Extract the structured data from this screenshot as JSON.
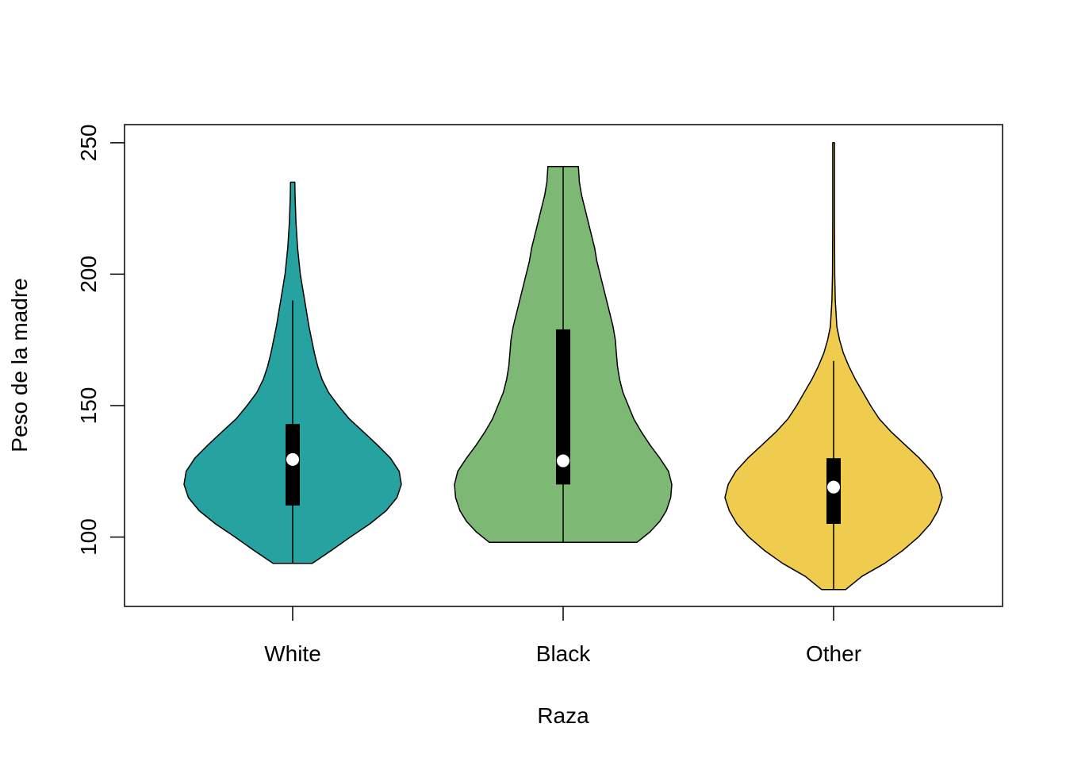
{
  "chart_data": {
    "type": "violin",
    "title": "",
    "xlabel": "Raza",
    "ylabel": "Peso de la madre",
    "ylim": [
      73.6,
      256.9
    ],
    "yticks": [
      100,
      150,
      200,
      250
    ],
    "ytick_labels": [
      "100",
      "150",
      "200",
      "250"
    ],
    "grid": false,
    "categories": [
      "White",
      "Black",
      "Other"
    ],
    "series": [
      {
        "category": "White",
        "color": "#26A3A1",
        "min": 90,
        "q1": 112,
        "median": 129.5,
        "q3": 143,
        "max": 235,
        "whisker_low": 90,
        "whisker_high": 190,
        "density": [
          [
            90,
            0.18
          ],
          [
            95,
            0.36
          ],
          [
            100,
            0.53
          ],
          [
            105,
            0.71
          ],
          [
            110,
            0.86
          ],
          [
            115,
            0.96
          ],
          [
            120,
            1.0
          ],
          [
            125,
            0.98
          ],
          [
            130,
            0.9
          ],
          [
            135,
            0.78
          ],
          [
            140,
            0.65
          ],
          [
            145,
            0.52
          ],
          [
            150,
            0.42
          ],
          [
            155,
            0.33
          ],
          [
            160,
            0.27
          ],
          [
            165,
            0.23
          ],
          [
            170,
            0.2
          ],
          [
            180,
            0.15
          ],
          [
            190,
            0.11
          ],
          [
            200,
            0.07
          ],
          [
            210,
            0.045
          ],
          [
            220,
            0.03
          ],
          [
            230,
            0.022
          ],
          [
            235,
            0.02
          ]
        ]
      },
      {
        "category": "Black",
        "color": "#7DB874",
        "min": 98,
        "q1": 120,
        "median": 129,
        "q3": 179,
        "max": 241,
        "whisker_low": 98,
        "whisker_high": 241,
        "density": [
          [
            98,
            0.68
          ],
          [
            102,
            0.8
          ],
          [
            106,
            0.89
          ],
          [
            110,
            0.95
          ],
          [
            115,
            0.99
          ],
          [
            120,
            1.0
          ],
          [
            125,
            0.97
          ],
          [
            130,
            0.89
          ],
          [
            135,
            0.8
          ],
          [
            140,
            0.72
          ],
          [
            145,
            0.65
          ],
          [
            150,
            0.6
          ],
          [
            155,
            0.55
          ],
          [
            160,
            0.52
          ],
          [
            165,
            0.5
          ],
          [
            170,
            0.49
          ],
          [
            175,
            0.48
          ],
          [
            180,
            0.46
          ],
          [
            185,
            0.43
          ],
          [
            190,
            0.4
          ],
          [
            195,
            0.37
          ],
          [
            200,
            0.34
          ],
          [
            205,
            0.31
          ],
          [
            210,
            0.29
          ],
          [
            215,
            0.26
          ],
          [
            220,
            0.23
          ],
          [
            225,
            0.2
          ],
          [
            230,
            0.17
          ],
          [
            235,
            0.15
          ],
          [
            241,
            0.14
          ]
        ]
      },
      {
        "category": "Other",
        "color": "#F0CC4E",
        "min": 80,
        "q1": 105,
        "median": 119,
        "q3": 130,
        "max": 250,
        "whisker_low": 80,
        "whisker_high": 167,
        "density": [
          [
            80,
            0.11
          ],
          [
            85,
            0.26
          ],
          [
            90,
            0.47
          ],
          [
            95,
            0.64
          ],
          [
            100,
            0.78
          ],
          [
            105,
            0.89
          ],
          [
            110,
            0.96
          ],
          [
            115,
            1.0
          ],
          [
            120,
            0.97
          ],
          [
            125,
            0.9
          ],
          [
            130,
            0.79
          ],
          [
            135,
            0.66
          ],
          [
            140,
            0.53
          ],
          [
            145,
            0.42
          ],
          [
            150,
            0.34
          ],
          [
            155,
            0.27
          ],
          [
            160,
            0.2
          ],
          [
            165,
            0.14
          ],
          [
            170,
            0.09
          ],
          [
            175,
            0.055
          ],
          [
            180,
            0.03
          ],
          [
            190,
            0.015
          ],
          [
            200,
            0.01
          ],
          [
            220,
            0.008
          ],
          [
            240,
            0.008
          ],
          [
            250,
            0.008
          ]
        ]
      }
    ]
  }
}
